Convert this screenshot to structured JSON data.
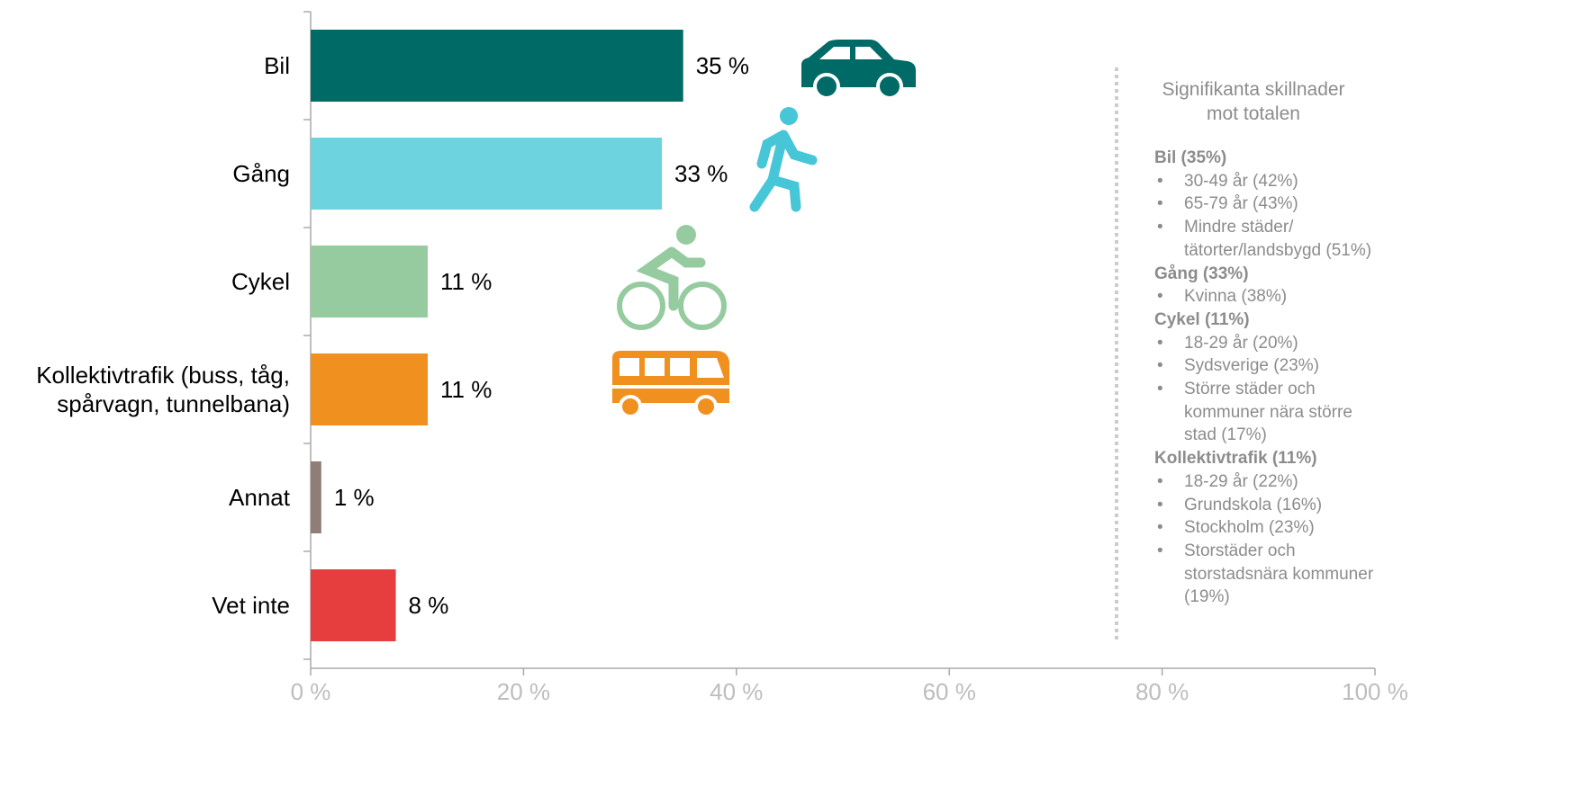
{
  "chart_data": {
    "type": "barh",
    "categories": [
      "Bil",
      "Gång",
      "Cykel",
      "Kollektivtrafik (buss, tåg,\nspårvagn, tunnelbana)",
      "Annat",
      "Vet inte"
    ],
    "values": [
      35,
      33,
      11,
      11,
      1,
      8
    ],
    "value_labels": [
      "35 %",
      "33 %",
      "11 %",
      "11 %",
      "1 %",
      "8 %"
    ],
    "colors": [
      "#006a66",
      "#6cd3df",
      "#96cba0",
      "#f0901e",
      "#8f7d77",
      "#e63e3e"
    ],
    "xlim": [
      0,
      100
    ],
    "xticks": [
      {
        "value": 0,
        "label": "0 %"
      },
      {
        "value": 20,
        "label": "20 %"
      },
      {
        "value": 40,
        "label": "40 %"
      },
      {
        "value": 60,
        "label": "60 %"
      },
      {
        "value": 80,
        "label": "80 %"
      },
      {
        "value": 100,
        "label": "100 %"
      }
    ]
  },
  "panel": {
    "title": "Signifikanta skillnader\nmot totalen",
    "groups": [
      {
        "heading": "Bil (35%)",
        "items": [
          "30-49 år (42%)",
          "65-79 år  (43%)",
          "Mindre städer/\ntätorter/landsbygd (51%)"
        ]
      },
      {
        "heading": "Gång (33%)",
        "items": [
          "Kvinna (38%)"
        ]
      },
      {
        "heading": "Cykel (11%)",
        "items": [
          "18-29 år (20%)",
          "Sydsverige (23%)",
          "Större städer och\nkommuner nära större\nstad (17%)"
        ]
      },
      {
        "heading": "Kollektivtrafik (11%)",
        "items": [
          "18-29 år (22%)",
          "Grundskola (16%)",
          "Stockholm (23%)",
          "Storstäder och\nstorstadsnära kommuner\n(19%)"
        ]
      }
    ]
  }
}
